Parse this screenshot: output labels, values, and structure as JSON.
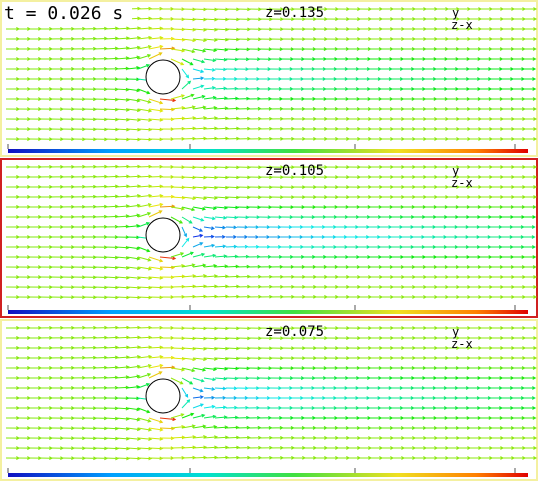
{
  "time_label": "t = 0.026 s",
  "panels": [
    {
      "label": "z=0.135",
      "axis_up": "y",
      "axis_side": "z-x"
    },
    {
      "label": "z=0.105",
      "axis_up": "y",
      "axis_side": "z-x"
    },
    {
      "label": "z=0.075",
      "axis_up": "y",
      "axis_side": "z-x"
    }
  ]
}
